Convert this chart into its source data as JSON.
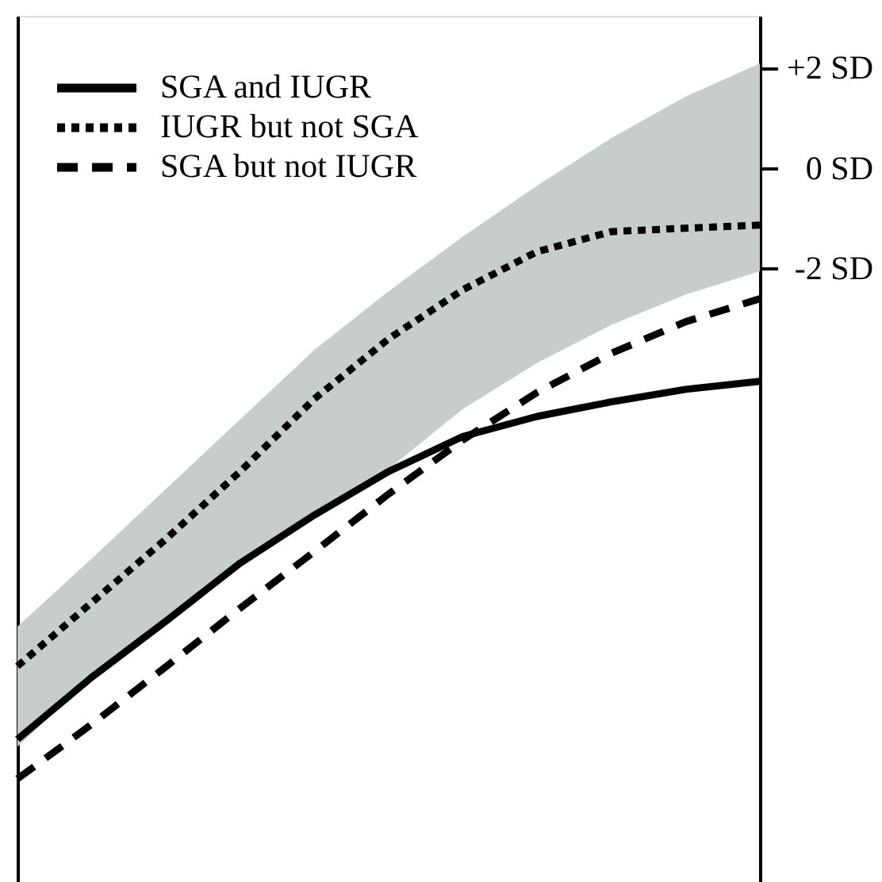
{
  "chart_data": {
    "type": "line",
    "categories": [
      null,
      null,
      null,
      null,
      null,
      null,
      null,
      null,
      null,
      null,
      null
    ],
    "ylim": [
      -14.25,
      3.05
    ],
    "yticks": [
      {
        "value": 2,
        "label": "+2 SD"
      },
      {
        "value": 0,
        "label": "0 SD"
      },
      {
        "value": -2,
        "label": "-2 SD"
      }
    ],
    "legend": "top left",
    "series": [
      {
        "color": "#c7cdcc",
        "values": [
          null,
          null,
          null,
          null,
          null,
          null,
          null,
          null,
          null,
          null,
          null
        ],
        "lower": [
          -11.55,
          -10.16,
          -9.04,
          -7.88,
          -6.92,
          -6.0,
          -4.8,
          -3.88,
          -3.12,
          -2.52,
          -2.05
        ],
        "upper": [
          -9.15,
          -7.79,
          -6.4,
          -5.01,
          -3.62,
          -2.45,
          -1.36,
          -0.34,
          0.61,
          1.44,
          2.1
        ]
      },
      {
        "name": "SGA and IUGR",
        "color": "#000000",
        "line_style": "solid",
        "values": [
          -11.4,
          -10.16,
          -9.04,
          -7.88,
          -6.92,
          -6.05,
          -5.35,
          -4.95,
          -4.66,
          -4.41,
          -4.25
        ]
      },
      {
        "name": "IUGR but not SGA",
        "color": "#000000",
        "line_style": "dotted",
        "values": [
          -9.94,
          -8.67,
          -7.4,
          -6.05,
          -4.6,
          -3.4,
          -2.42,
          -1.66,
          -1.26,
          -1.19,
          -1.13
        ]
      },
      {
        "name": "SGA but not IUGR",
        "color": "#000000",
        "line_style": "dashed",
        "values": [
          -12.19,
          -11.1,
          -9.95,
          -8.78,
          -7.65,
          -6.5,
          -5.42,
          -4.47,
          -3.69,
          -3.06,
          -2.6
        ]
      }
    ]
  }
}
